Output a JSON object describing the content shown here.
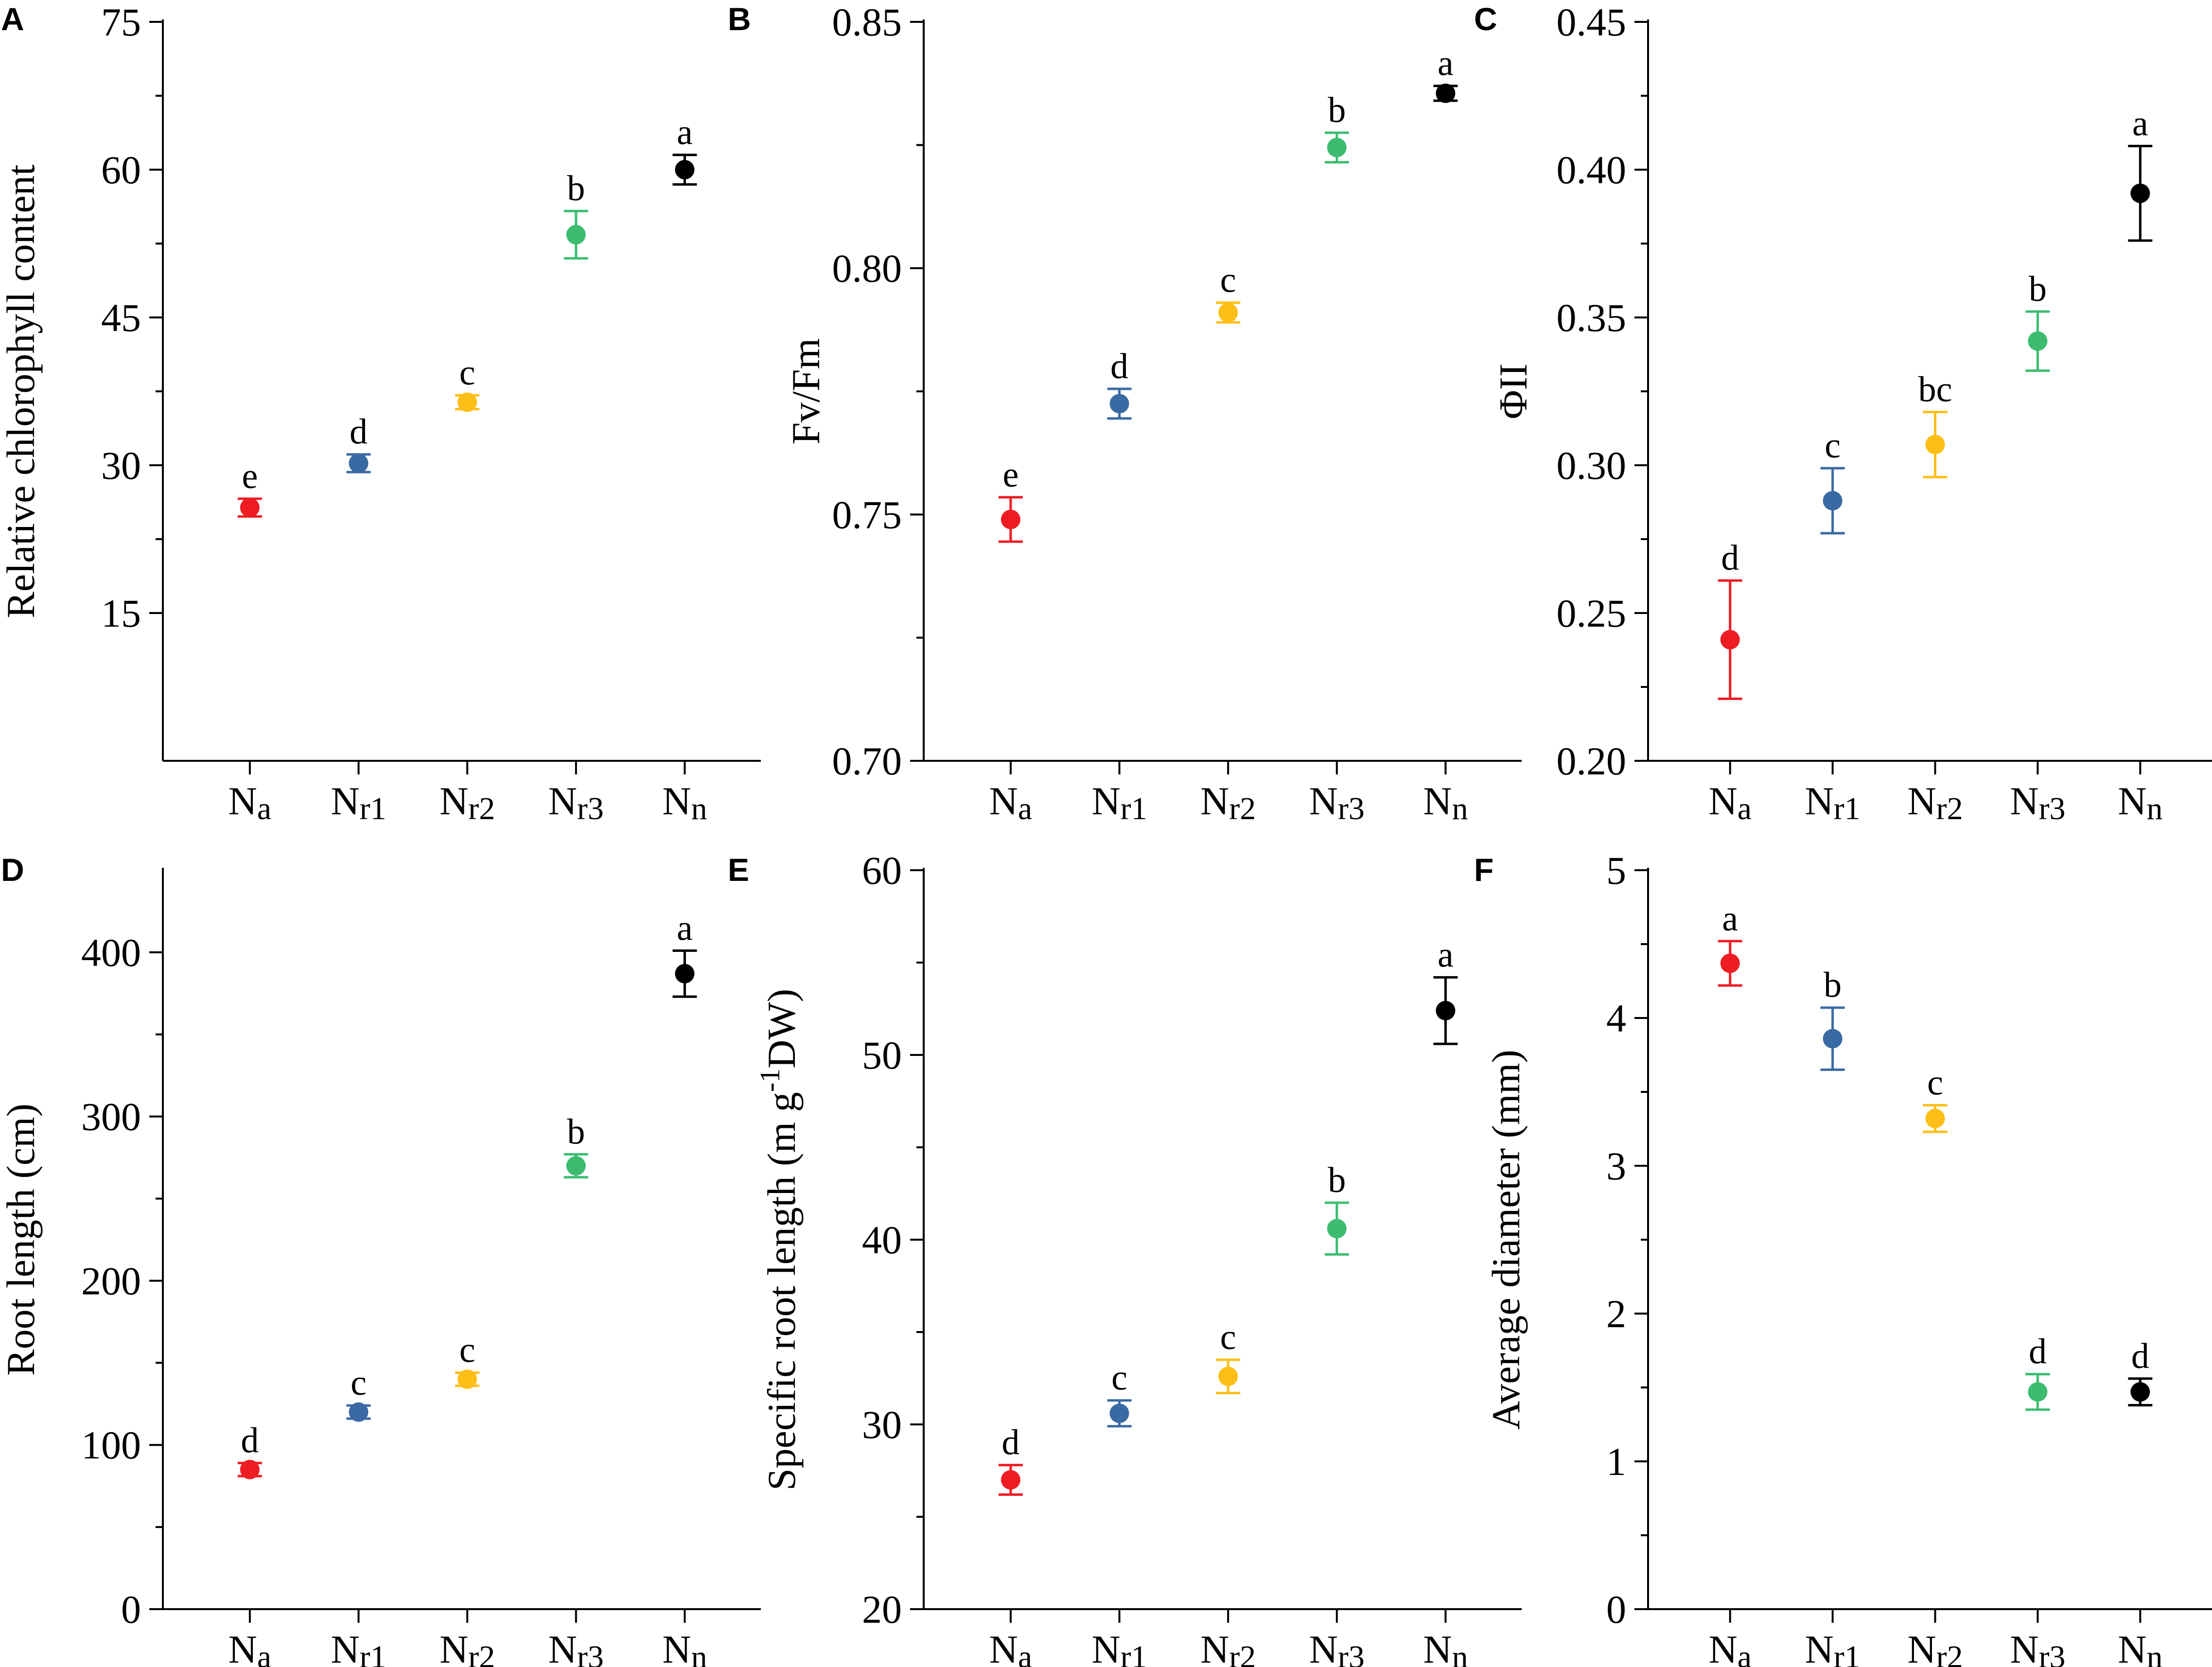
{
  "figure": {
    "groups": [
      "Na",
      "Nr1",
      "Nr2",
      "Nr3",
      "Nn"
    ],
    "group_colors": [
      "#ee1c23",
      "#3a6aa3",
      "#fdbe17",
      "#3dbc70",
      "#000000"
    ]
  },
  "chart_data": [
    {
      "panel": "A",
      "type": "scatter",
      "ylabel": "Relative chlorophyll content",
      "ylim": [
        0,
        75
      ],
      "ymin_label": 15,
      "yticks": [
        15,
        30,
        45,
        60,
        75
      ],
      "ytick_labels": [
        "15",
        "30",
        "45",
        "60",
        "75"
      ],
      "minor_ticks": true,
      "categories": [
        "Na",
        "Nr1",
        "Nr2",
        "Nr3",
        "Nn"
      ],
      "values": [
        25.7,
        30.2,
        36.4,
        53.4,
        60.0
      ],
      "errors": [
        0.9,
        0.9,
        0.7,
        2.4,
        1.5
      ],
      "letters": [
        "e",
        "d",
        "c",
        "b",
        "a"
      ]
    },
    {
      "panel": "B",
      "type": "scatter",
      "ylabel": "Fv/Fm",
      "ylim": [
        0.7,
        0.85
      ],
      "yticks": [
        0.7,
        0.75,
        0.8,
        0.85
      ],
      "ytick_labels": [
        "0.70",
        "0.75",
        "0.80",
        "0.85"
      ],
      "minor_ticks": true,
      "categories": [
        "Na",
        "Nr1",
        "Nr2",
        "Nr3",
        "Nn"
      ],
      "values": [
        0.749,
        0.7725,
        0.791,
        0.8245,
        0.8355
      ],
      "errors": [
        0.0045,
        0.003,
        0.002,
        0.003,
        0.0015
      ],
      "letters": [
        "e",
        "d",
        "c",
        "b",
        "a"
      ]
    },
    {
      "panel": "C",
      "type": "scatter",
      "ylabel": "ΦII",
      "ylim": [
        0.2,
        0.45
      ],
      "yticks": [
        0.2,
        0.25,
        0.3,
        0.35,
        0.4,
        0.45
      ],
      "ytick_labels": [
        "0.20",
        "0.25",
        "0.30",
        "0.35",
        "0.40",
        "0.45"
      ],
      "minor_ticks": true,
      "categories": [
        "Na",
        "Nr1",
        "Nr2",
        "Nr3",
        "Nn"
      ],
      "values": [
        0.241,
        0.288,
        0.307,
        0.342,
        0.392
      ],
      "errors": [
        0.02,
        0.011,
        0.011,
        0.01,
        0.016
      ],
      "letters": [
        "d",
        "c",
        "bc",
        "b",
        "a"
      ]
    },
    {
      "panel": "D",
      "type": "scatter",
      "ylabel": "Root length (cm)",
      "ylim": [
        0,
        450
      ],
      "yticks": [
        0,
        100,
        200,
        300,
        400
      ],
      "ytick_labels": [
        "0",
        "100",
        "200",
        "300",
        "400"
      ],
      "minor_ticks": true,
      "categories": [
        "Na",
        "Nr1",
        "Nr2",
        "Nr3",
        "Nn"
      ],
      "values": [
        85,
        120,
        140,
        270,
        387
      ],
      "errors": [
        4,
        4,
        4,
        7,
        14
      ],
      "letters": [
        "d",
        "c",
        "c",
        "b",
        "a"
      ]
    },
    {
      "panel": "E",
      "type": "scatter",
      "ylabel": "Specific root length (m g",
      "ylabel_sup": "-1",
      "ylabel_tail": "DW)",
      "ylim": [
        20,
        60
      ],
      "yticks": [
        20,
        30,
        40,
        50,
        60
      ],
      "ytick_labels": [
        "20",
        "30",
        "40",
        "50",
        "60"
      ],
      "minor_ticks": true,
      "categories": [
        "Na",
        "Nr1",
        "Nr2",
        "Nr3",
        "Nn"
      ],
      "values": [
        27.0,
        30.6,
        32.6,
        40.6,
        52.4
      ],
      "errors": [
        0.8,
        0.7,
        0.9,
        1.4,
        1.8
      ],
      "letters": [
        "d",
        "c",
        "c",
        "b",
        "a"
      ]
    },
    {
      "panel": "F",
      "type": "scatter",
      "ylabel": "Average diameter (mm)",
      "ylim": [
        0,
        5
      ],
      "yticks": [
        0,
        1,
        2,
        3,
        4,
        5
      ],
      "ytick_labels": [
        "0",
        "1",
        "2",
        "3",
        "4",
        "5"
      ],
      "minor_ticks": true,
      "categories": [
        "Na",
        "Nr1",
        "Nr2",
        "Nr3",
        "Nn"
      ],
      "values": [
        4.37,
        3.86,
        3.32,
        1.47,
        1.47
      ],
      "errors": [
        0.15,
        0.21,
        0.09,
        0.12,
        0.09
      ],
      "letters": [
        "a",
        "b",
        "c",
        "d",
        "d"
      ]
    }
  ]
}
